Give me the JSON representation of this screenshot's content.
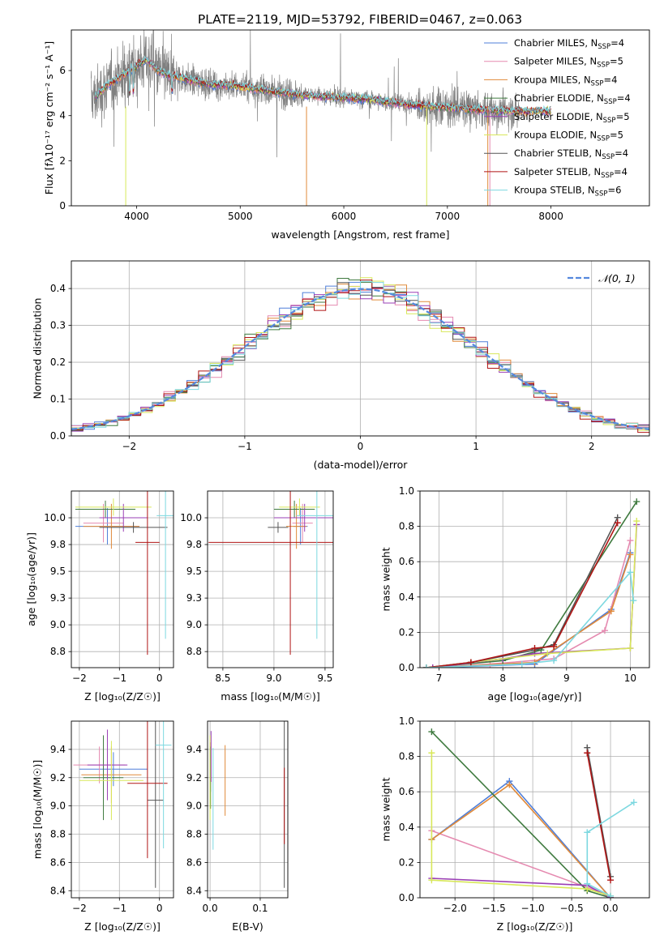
{
  "figure_title": "PLATE=2119, MJD=53792, FIBERID=0467, z=0.063",
  "colors": {
    "cm": "#4f7fd9",
    "sm": "#e58ab0",
    "km": "#e08a3a",
    "ce": "#3f7a3f",
    "se": "#9a3fb5",
    "ke": "#d8e85a",
    "cs": "#555555",
    "ss": "#b01515",
    "ks": "#7dd8e0",
    "data": "#808080",
    "normal": "#5588dd"
  },
  "legend_models": [
    {
      "key": "cm",
      "name": "Chabrier MILES",
      "n": "4"
    },
    {
      "key": "sm",
      "name": "Salpeter MILES",
      "n": "5"
    },
    {
      "key": "km",
      "name": "Kroupa MILES",
      "n": "4"
    },
    {
      "key": "ce",
      "name": "Chabrier ELODIE",
      "n": "4"
    },
    {
      "key": "se",
      "name": "Salpeter ELODIE",
      "n": "5"
    },
    {
      "key": "ke",
      "name": "Kroupa ELODIE",
      "n": "5"
    },
    {
      "key": "cs",
      "name": "Chabrier STELIB",
      "n": "4"
    },
    {
      "key": "ss",
      "name": "Salpeter STELIB",
      "n": "4"
    },
    {
      "key": "ks",
      "name": "Kroupa STELIB",
      "n": "6"
    }
  ],
  "chart_data": [
    {
      "id": "spectrum",
      "type": "line",
      "xlabel": "wavelength [Angstrom, rest frame]",
      "ylabel": "Flux [fλ10⁻¹⁷ erg cm⁻² s⁻¹ A⁻¹]",
      "xlim": [
        3370,
        8950
      ],
      "ylim": [
        0,
        7.8
      ],
      "xticks": [
        4000,
        5000,
        6000,
        7000,
        8000
      ],
      "yticks": [
        0,
        2,
        4,
        6
      ],
      "continuum": {
        "x": [
          3600,
          3700,
          3800,
          3900,
          4000,
          4100,
          4200,
          4300,
          4500,
          4700,
          5000,
          5300,
          5600,
          6000,
          6300,
          6600,
          6900,
          7200,
          7500
        ],
        "y": [
          4.8,
          5.3,
          5.6,
          5.9,
          6.2,
          6.5,
          6.0,
          5.8,
          5.6,
          5.4,
          5.3,
          5.1,
          4.9,
          4.8,
          4.7,
          4.5,
          4.4,
          4.3,
          4.2
        ]
      },
      "model_range": [
        3600,
        8000
      ],
      "data_range": [
        3560,
        7700
      ]
    },
    {
      "id": "residuals",
      "type": "histogram",
      "xlabel": "(data-model)/error",
      "ylabel": "Normed distribution",
      "xlim": [
        -2.5,
        2.5
      ],
      "ylim": [
        0,
        0.475
      ],
      "xticks": [
        -2,
        -1,
        0,
        1,
        2
      ],
      "yticks": [
        0.0,
        0.1,
        0.2,
        0.3,
        0.4
      ],
      "bin_width": 0.1,
      "legend_label": "𝒩(0, 1)"
    },
    {
      "id": "age_vs_Z",
      "type": "errorbar",
      "xlabel": "Z [log₁₀(Z/Z☉)]",
      "ylabel": "age  [log₁₀(age/yr)]",
      "xlim": [
        -2.2,
        0.35
      ],
      "ylim": [
        8.6,
        10.25
      ],
      "xticks": [
        -2,
        -1,
        0
      ],
      "yticks": [
        8.75,
        9.0,
        9.25,
        9.5,
        9.75,
        10.0
      ],
      "points": [
        {
          "key": "cm",
          "x": -1.3,
          "xerr": 0.8,
          "y": 9.92,
          "yerr": 0.17
        },
        {
          "key": "sm",
          "x": -1.4,
          "xerr": 0.5,
          "y": 9.95,
          "yerr": 0.18
        },
        {
          "key": "km",
          "x": -1.2,
          "xerr": 0.7,
          "y": 9.92,
          "yerr": 0.21
        },
        {
          "key": "ce",
          "x": -1.35,
          "xerr": 0.75,
          "y": 10.08,
          "yerr": 0.08
        },
        {
          "key": "se",
          "x": -0.9,
          "xerr": 0.6,
          "y": 10.0,
          "yerr": 0.13
        },
        {
          "key": "ke",
          "x": -1.15,
          "xerr": 0.95,
          "y": 10.1,
          "yerr": 0.08
        },
        {
          "key": "cs",
          "x": -0.65,
          "xerr": 0.85,
          "y": 9.91,
          "yerr": 0.05
        },
        {
          "key": "ss",
          "x": -0.3,
          "xerr": 0.3,
          "y": 9.77,
          "yerr": 1.05
        },
        {
          "key": "ks",
          "x": 0.15,
          "xerr": 0.22,
          "y": 10.02,
          "yerr": 1.15
        }
      ]
    },
    {
      "id": "age_vs_mass",
      "type": "errorbar",
      "xlabel": "mass [log₁₀(M/M☉)]",
      "ylabel": "",
      "xlim": [
        8.35,
        9.58
      ],
      "ylim": [
        8.6,
        10.25
      ],
      "xticks": [
        8.5,
        9.0,
        9.5
      ],
      "yticks": [
        8.75,
        9.0,
        9.25,
        9.5,
        9.75,
        10.0
      ],
      "points": [
        {
          "key": "cm",
          "x": 9.26,
          "xerr": 0.07,
          "y": 9.92,
          "yerr": 0.17
        },
        {
          "key": "sm",
          "x": 9.28,
          "xerr": 0.1,
          "y": 9.95,
          "yerr": 0.18
        },
        {
          "key": "km",
          "x": 9.22,
          "xerr": 0.1,
          "y": 9.92,
          "yerr": 0.21
        },
        {
          "key": "ce",
          "x": 9.2,
          "xerr": 0.2,
          "y": 10.08,
          "yerr": 0.08
        },
        {
          "key": "se",
          "x": 9.3,
          "xerr": 0.3,
          "y": 10.0,
          "yerr": 0.13
        },
        {
          "key": "ke",
          "x": 9.25,
          "xerr": 0.2,
          "y": 10.1,
          "yerr": 0.08
        },
        {
          "key": "cs",
          "x": 9.04,
          "xerr": 0.1,
          "y": 9.91,
          "yerr": 0.05
        },
        {
          "key": "ss",
          "x": 9.16,
          "xerr": 0.8,
          "y": 9.77,
          "yerr": 1.05
        },
        {
          "key": "ks",
          "x": 9.42,
          "xerr": 0.2,
          "y": 10.02,
          "yerr": 1.15
        }
      ]
    },
    {
      "id": "weight_vs_age",
      "type": "line",
      "xlabel": "age  [log₁₀(age/yr)]",
      "ylabel": "mass weight",
      "xlim": [
        6.7,
        10.3
      ],
      "ylim": [
        0,
        1.0
      ],
      "xticks": [
        7,
        8,
        9,
        10
      ],
      "yticks": [
        0.0,
        0.2,
        0.4,
        0.6,
        0.8,
        1.0
      ],
      "series": [
        {
          "key": "cm",
          "x": [
            6.9,
            8.5,
            9.7,
            10.0
          ],
          "y": [
            0.0,
            0.02,
            0.33,
            0.65
          ]
        },
        {
          "key": "sm",
          "x": [
            6.9,
            7.8,
            8.8,
            9.6,
            10.0
          ],
          "y": [
            0.0,
            0.02,
            0.05,
            0.21,
            0.72
          ]
        },
        {
          "key": "km",
          "x": [
            6.9,
            8.5,
            9.7,
            10.0
          ],
          "y": [
            0.0,
            0.03,
            0.32,
            0.64
          ]
        },
        {
          "key": "ce",
          "x": [
            6.8,
            8.0,
            8.6,
            10.1
          ],
          "y": [
            0.0,
            0.04,
            0.1,
            0.94
          ]
        },
        {
          "key": "se",
          "x": [
            6.9,
            8.0,
            8.5,
            10.0,
            10.1
          ],
          "y": [
            0.0,
            0.05,
            0.08,
            0.11,
            0.81
          ]
        },
        {
          "key": "ke",
          "x": [
            6.8,
            7.5,
            8.7,
            10.0,
            10.1
          ],
          "y": [
            0.0,
            0.03,
            0.08,
            0.11,
            0.83
          ]
        },
        {
          "key": "cs",
          "x": [
            6.8,
            7.5,
            8.5,
            8.8,
            9.8
          ],
          "y": [
            0.0,
            0.03,
            0.1,
            0.13,
            0.85
          ]
        },
        {
          "key": "ss",
          "x": [
            6.8,
            7.5,
            8.5,
            8.8,
            9.8
          ],
          "y": [
            0.0,
            0.03,
            0.11,
            0.12,
            0.82
          ]
        },
        {
          "key": "ks",
          "x": [
            6.8,
            8.3,
            8.8,
            10.0,
            10.05
          ],
          "y": [
            0.0,
            0.02,
            0.04,
            0.54,
            0.38
          ]
        }
      ]
    },
    {
      "id": "mass_vs_Z",
      "type": "errorbar",
      "xlabel": "Z [log₁₀(Z/Z☉)]",
      "ylabel": "mass [log₁₀(M/M☉)]",
      "xlim": [
        -2.2,
        0.35
      ],
      "ylim": [
        8.35,
        9.6
      ],
      "xticks": [
        -2,
        -1,
        0
      ],
      "yticks": [
        8.4,
        8.6,
        8.8,
        9.0,
        9.2,
        9.4
      ],
      "points": [
        {
          "key": "cm",
          "x": -1.15,
          "xerr": 0.85,
          "y": 9.26,
          "yerr": 0.12
        },
        {
          "key": "sm",
          "x": -1.5,
          "xerr": 0.65,
          "y": 9.29,
          "yerr": 0.13
        },
        {
          "key": "km",
          "x": -1.2,
          "xerr": 0.75,
          "y": 9.22,
          "yerr": 0.2
        },
        {
          "key": "ce",
          "x": -1.4,
          "xerr": 0.5,
          "y": 9.2,
          "yerr": 0.3
        },
        {
          "key": "se",
          "x": -1.3,
          "xerr": 0.5,
          "y": 9.29,
          "yerr": 0.25
        },
        {
          "key": "ke",
          "x": -1.2,
          "xerr": 0.8,
          "y": 9.18,
          "yerr": 0.28
        },
        {
          "key": "cs",
          "x": -0.1,
          "xerr": 0.2,
          "y": 9.04,
          "yerr": 0.62
        },
        {
          "key": "ss",
          "x": -0.3,
          "xerr": 0.5,
          "y": 9.16,
          "yerr": 0.53
        },
        {
          "key": "ks",
          "x": 0.1,
          "xerr": 0.2,
          "y": 9.43,
          "yerr": 0.73
        }
      ]
    },
    {
      "id": "mass_vs_ebv",
      "type": "errorbar",
      "xlabel": "E(B-V)",
      "ylabel": "",
      "xlim": [
        -0.005,
        0.155
      ],
      "ylim": [
        8.35,
        9.6
      ],
      "xticks": [
        0.0,
        0.1
      ],
      "yticks": [
        8.4,
        8.6,
        8.8,
        9.0,
        9.2,
        9.4
      ],
      "points": [
        {
          "key": "cm",
          "x": 0.001,
          "y": 9.25,
          "yerr": 0.15
        },
        {
          "key": "sm",
          "x": 0.001,
          "y": 9.3,
          "yerr": 0.15
        },
        {
          "key": "km",
          "x": 0.03,
          "y": 9.18,
          "yerr": 0.25
        },
        {
          "key": "ce",
          "x": 0.001,
          "y": 9.2,
          "yerr": 0.22
        },
        {
          "key": "se",
          "x": 0.002,
          "y": 9.35,
          "yerr": 0.18
        },
        {
          "key": "ke",
          "x": 0.0,
          "y": 9.2,
          "yerr": 0.3
        },
        {
          "key": "cs",
          "x": 0.148,
          "y": 9.04,
          "yerr": 0.62
        },
        {
          "key": "ss",
          "x": 0.148,
          "y": 9.0,
          "yerr": 0.27
        },
        {
          "key": "ks",
          "x": 0.006,
          "y": 9.05,
          "yerr": 0.36
        }
      ]
    },
    {
      "id": "weight_vs_Z",
      "type": "line",
      "xlabel": "Z [log₁₀(Z/Z☉)]",
      "ylabel": "mass weight",
      "xlim": [
        -2.45,
        0.5
      ],
      "ylim": [
        0,
        1.0
      ],
      "xticks": [
        -2.0,
        -1.5,
        -1.0,
        -0.5,
        0.0
      ],
      "yticks": [
        0.0,
        0.2,
        0.4,
        0.6,
        0.8,
        1.0
      ],
      "series": [
        {
          "key": "cm",
          "x": [
            -2.3,
            -1.3,
            0.0
          ],
          "y": [
            0.33,
            0.66,
            0.0
          ]
        },
        {
          "key": "sm",
          "x": [
            -2.3,
            0.0,
            0.0
          ],
          "y": [
            0.38,
            0.01,
            0.0
          ]
        },
        {
          "key": "km",
          "x": [
            -2.3,
            -1.3,
            0.0
          ],
          "y": [
            0.33,
            0.64,
            0.0
          ]
        },
        {
          "key": "ce",
          "x": [
            -2.3,
            -0.3,
            0.0
          ],
          "y": [
            0.94,
            0.04,
            0.0
          ]
        },
        {
          "key": "se",
          "x": [
            -2.3,
            -0.3,
            0.0
          ],
          "y": [
            0.11,
            0.07,
            0.0
          ]
        },
        {
          "key": "ke",
          "x": [
            -2.3,
            -2.3,
            -0.3,
            0.0
          ],
          "y": [
            0.82,
            0.1,
            0.05,
            0.01
          ]
        },
        {
          "key": "cs",
          "x": [
            -0.3,
            0.0
          ],
          "y": [
            0.85,
            0.12
          ]
        },
        {
          "key": "ss",
          "x": [
            -0.3,
            0.0
          ],
          "y": [
            0.82,
            0.1
          ]
        },
        {
          "key": "ks",
          "x": [
            0.3,
            -0.3,
            -0.3,
            0.0
          ],
          "y": [
            0.54,
            0.37,
            0.08,
            0.01
          ]
        }
      ]
    }
  ]
}
